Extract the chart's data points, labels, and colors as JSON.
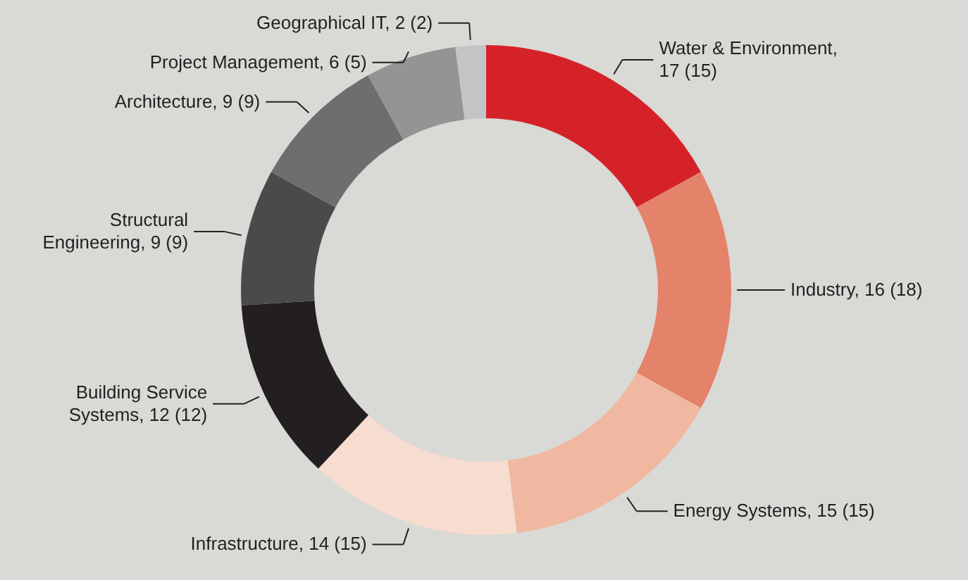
{
  "chart_data": {
    "type": "donut",
    "categories": [
      "Water & Environment, 17 (15)",
      "Industry, 16 (18)",
      "Energy Systems, 15 (15)",
      "Infrastructure, 14 (15)",
      "Building Service Systems, 12 (12)",
      "Structural Engineering, 9 (9)",
      "Architecture, 9 (9)",
      "Project Management, 6 (5)",
      "Geographical IT, 2 (2)"
    ],
    "values": [
      17,
      16,
      15,
      14,
      12,
      9,
      9,
      6,
      2
    ],
    "colors": [
      "#d52229",
      "#e5826a",
      "#f0b8a0",
      "#f7dcd0",
      "#231f20",
      "#4a4a4a",
      "#6d6e70",
      "#949494",
      "#c3c4c6"
    ]
  }
}
